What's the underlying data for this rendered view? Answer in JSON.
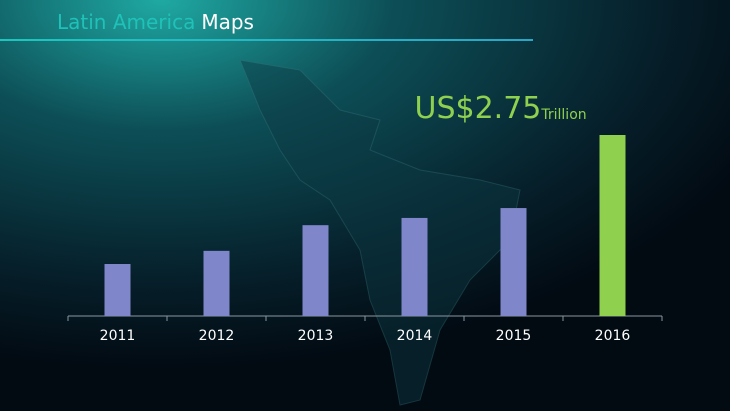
{
  "chart_data": {
    "type": "bar",
    "title": {
      "part1": "Latin America",
      "part2": "Maps"
    },
    "categories": [
      "2011",
      "2012",
      "2013",
      "2014",
      "2015",
      "2016"
    ],
    "values": [
      0.79,
      0.99,
      1.38,
      1.49,
      1.64,
      2.75
    ],
    "value_labels": [
      null,
      null,
      null,
      null,
      null,
      "US$2.75"
    ],
    "value_unit_label": "Trillion",
    "colors": [
      "#7f86c9",
      "#7f86c9",
      "#7f86c9",
      "#7f86c9",
      "#7f86c9",
      "#8fd14f"
    ],
    "label_color": "#8fd14f"
  }
}
